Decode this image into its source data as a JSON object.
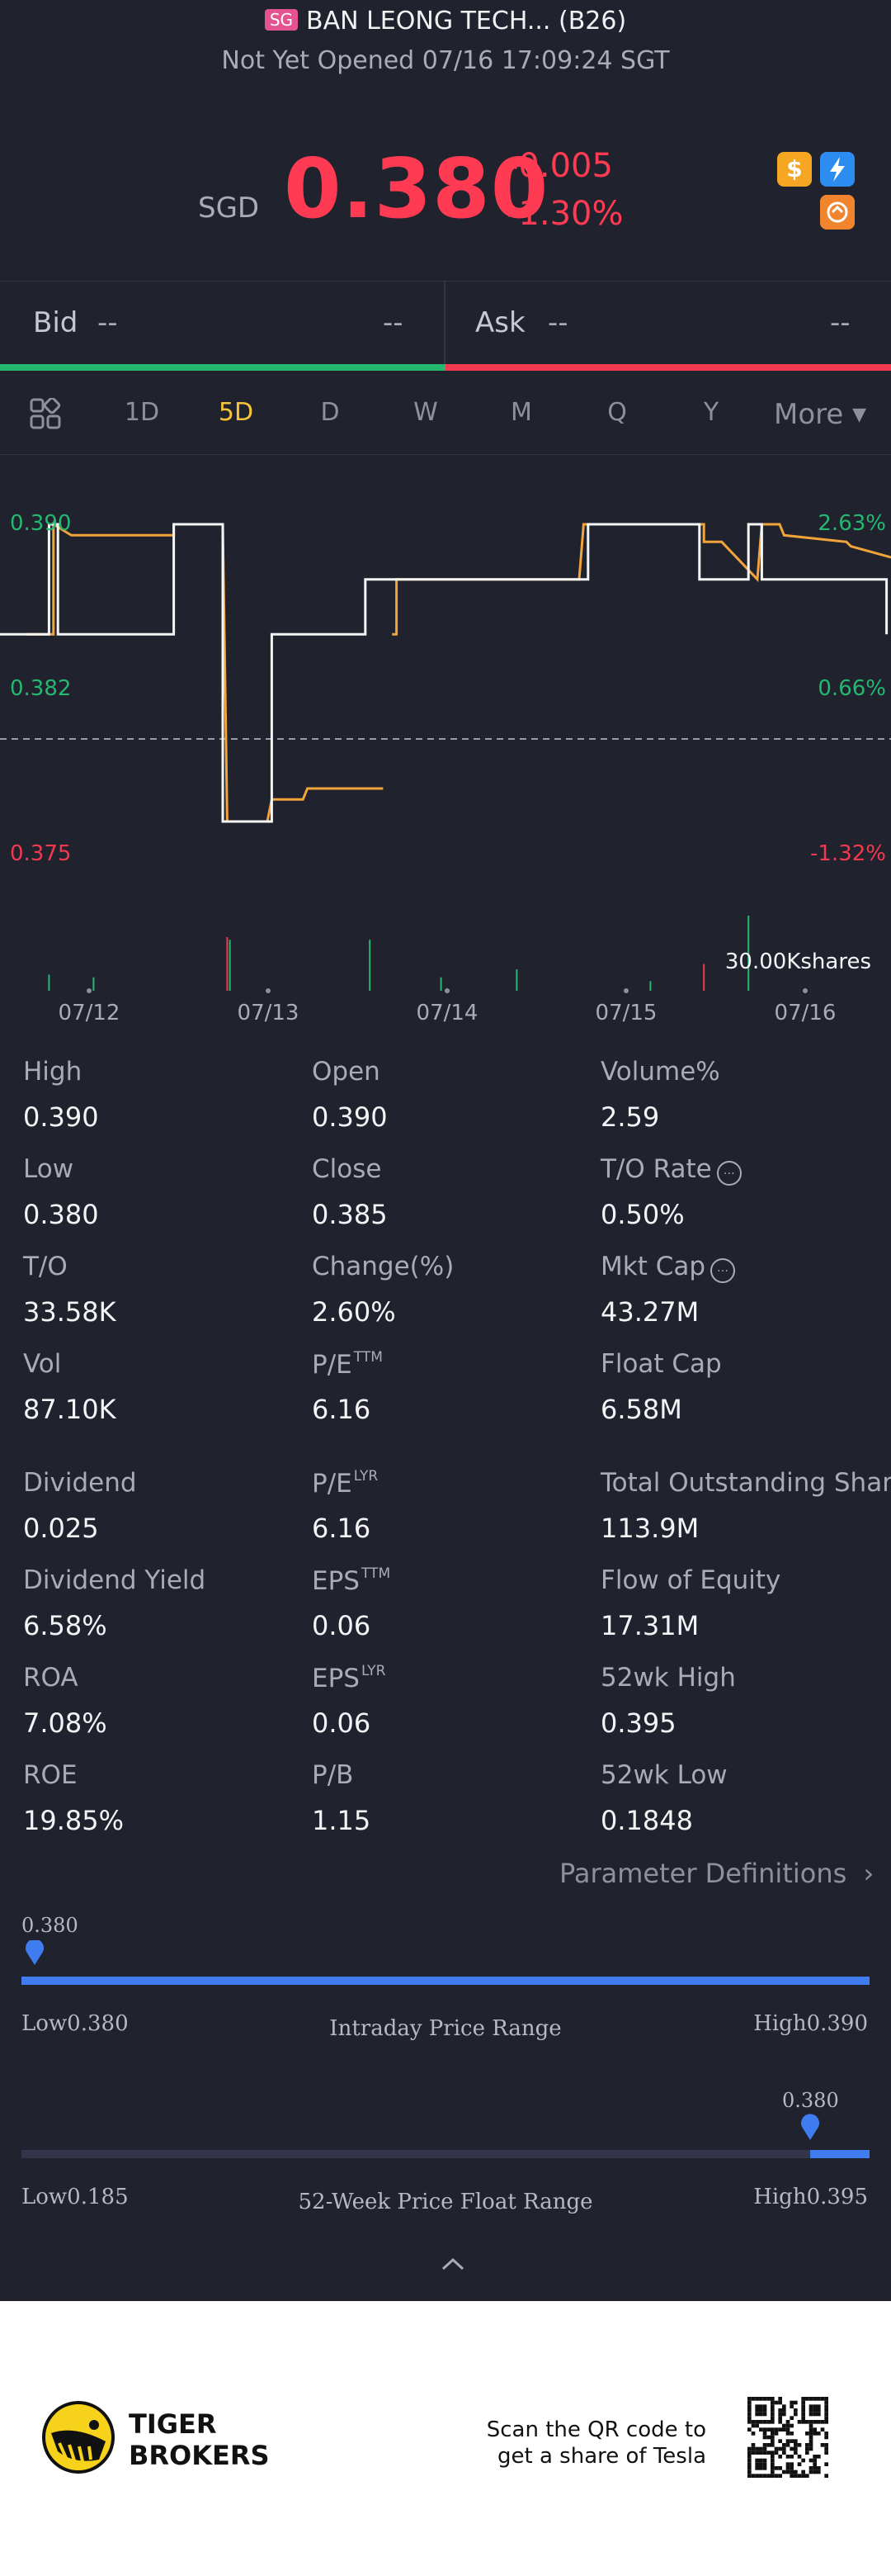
{
  "header": {
    "market_badge": "SG",
    "title": "BAN LEONG TECH... (B26)",
    "status": "Not Yet Opened 07/16 17:09:24 SGT",
    "currency": "SGD",
    "price": "0.380",
    "change": "-0.005",
    "change_pct": "-1.30%",
    "icons": [
      "dollar-badge-icon",
      "lightning-icon",
      "swap-icon"
    ]
  },
  "quote": {
    "bid_label": "Bid",
    "bid_price": "--",
    "bid_size": "--",
    "ask_label": "Ask",
    "ask_price": "--",
    "ask_size": "--"
  },
  "tabs": {
    "items": [
      "1D",
      "5D",
      "D",
      "W",
      "M",
      "Q",
      "Y"
    ],
    "active": "5D",
    "more": "More"
  },
  "chart_data": {
    "type": "line",
    "x_ticks": [
      "07/12",
      "07/13",
      "07/14",
      "07/15",
      "07/16"
    ],
    "y_left_ticks": [
      "0.390",
      "0.382",
      "0.375"
    ],
    "y_right_ticks": [
      "2.63%",
      "0.66%",
      "-1.32%"
    ],
    "ylim": [
      0.375,
      0.39
    ],
    "prev_close": 0.385,
    "volume_label": "30.00Kshares",
    "series": [
      {
        "color": "#f2a33a",
        "points": [
          [
            0.3,
            0.385
          ],
          [
            0.6,
            0.385
          ],
          [
            0.6,
            0.39
          ],
          [
            0.8,
            0.3895
          ],
          [
            1.95,
            0.3895
          ],
          [
            1.95,
            0.39
          ],
          [
            2.5,
            0.39
          ],
          [
            2.55,
            0.3765
          ],
          [
            3.0,
            0.3765
          ],
          [
            3.05,
            0.3775
          ],
          [
            3.4,
            0.3775
          ],
          [
            3.45,
            0.378
          ],
          [
            4.3,
            0.378
          ]
        ]
      },
      {
        "color": "#f2a33a",
        "points": [
          [
            4.4,
            0.385
          ],
          [
            4.45,
            0.385
          ],
          [
            4.45,
            0.3875
          ],
          [
            6.5,
            0.3875
          ],
          [
            6.55,
            0.39
          ],
          [
            7.9,
            0.39
          ],
          [
            7.9,
            0.3892
          ],
          [
            8.1,
            0.3892
          ],
          [
            8.5,
            0.3875
          ],
          [
            8.55,
            0.39
          ],
          [
            8.75,
            0.39
          ],
          [
            8.8,
            0.3895
          ],
          [
            9.5,
            0.3892
          ],
          [
            9.55,
            0.389
          ],
          [
            10.0,
            0.3885
          ]
        ]
      },
      {
        "color": "#f5f5f5",
        "points": [
          [
            0.0,
            0.385
          ],
          [
            0.55,
            0.385
          ],
          [
            0.55,
            0.39
          ],
          [
            0.65,
            0.39
          ],
          [
            0.65,
            0.385
          ],
          [
            1.95,
            0.385
          ],
          [
            1.95,
            0.39
          ],
          [
            2.5,
            0.39
          ],
          [
            2.5,
            0.3765
          ],
          [
            3.05,
            0.3765
          ],
          [
            3.05,
            0.385
          ],
          [
            4.1,
            0.385
          ],
          [
            4.1,
            0.3875
          ],
          [
            6.6,
            0.3875
          ],
          [
            6.6,
            0.39
          ],
          [
            7.85,
            0.39
          ],
          [
            7.85,
            0.3875
          ],
          [
            8.4,
            0.3875
          ],
          [
            8.4,
            0.39
          ],
          [
            8.55,
            0.39
          ],
          [
            8.55,
            0.3875
          ],
          [
            9.95,
            0.3875
          ],
          [
            9.95,
            0.385
          ]
        ]
      }
    ],
    "volume": [
      {
        "x": 0.55,
        "v": 0.3,
        "c": "#25b870"
      },
      {
        "x": 1.05,
        "v": 0.25,
        "c": "#25b870"
      },
      {
        "x": 2.55,
        "v": 1.0,
        "c": "#f2394f"
      },
      {
        "x": 2.58,
        "v": 0.95,
        "c": "#25b870"
      },
      {
        "x": 4.15,
        "v": 0.95,
        "c": "#25b870"
      },
      {
        "x": 4.95,
        "v": 0.25,
        "c": "#25b870"
      },
      {
        "x": 5.8,
        "v": 0.4,
        "c": "#25b870"
      },
      {
        "x": 7.3,
        "v": 0.18,
        "c": "#25b870"
      },
      {
        "x": 7.9,
        "v": 0.5,
        "c": "#f2394f"
      },
      {
        "x": 8.4,
        "v": 1.4,
        "c": "#25b870"
      }
    ]
  },
  "stats": [
    {
      "label": "High",
      "value": "0.390"
    },
    {
      "label": "Open",
      "value": "0.390"
    },
    {
      "label": "Volume%",
      "value": "2.59"
    },
    {
      "label": "Low",
      "value": "0.380"
    },
    {
      "label": "Close",
      "value": "0.385"
    },
    {
      "label": "T/O Rate",
      "value": "0.50%",
      "info": true
    },
    {
      "label": "T/O",
      "value": "33.58K"
    },
    {
      "label": "Change(%)",
      "value": "2.60%"
    },
    {
      "label": "Mkt Cap",
      "value": "43.27M",
      "info": true
    },
    {
      "label": "Vol",
      "value": "87.10K"
    },
    {
      "label": "P/E",
      "sup": "TTM",
      "value": "6.16"
    },
    {
      "label": "Float Cap",
      "value": "6.58M"
    },
    {
      "label": "Dividend",
      "value": "0.025"
    },
    {
      "label": "P/E",
      "sup": "LYR",
      "value": "6.16"
    },
    {
      "label": "Total Outstanding Shares",
      "value": "113.9M"
    },
    {
      "label": "Dividend Yield",
      "value": "6.58%"
    },
    {
      "label": "EPS",
      "sup": "TTM",
      "value": "0.06"
    },
    {
      "label": "Flow of Equity",
      "value": "17.31M"
    },
    {
      "label": "ROA",
      "value": "7.08%"
    },
    {
      "label": "EPS",
      "sup": "LYR",
      "value": "0.06"
    },
    {
      "label": "52wk High",
      "value": "0.395"
    },
    {
      "label": "ROE",
      "value": "19.85%"
    },
    {
      "label": "P/B",
      "value": "1.15"
    },
    {
      "label": "52wk Low",
      "value": "0.1848"
    }
  ],
  "param_definitions": "Parameter Definitions",
  "intraday_range": {
    "current": "0.380",
    "low_label": "Low0.380",
    "high_label": "High0.390",
    "title": "Intraday Price Range",
    "position": 0.0
  },
  "week52_range": {
    "current": "0.380",
    "low_label": "Low0.185",
    "high_label": "High0.395",
    "title": "52-Week Price Float Range",
    "position": 0.93
  },
  "footer": {
    "brand_line1": "TIGER",
    "brand_line2": "BROKERS",
    "cta_line1": "Scan the QR code to",
    "cta_line2": "get a share of Tesla"
  }
}
